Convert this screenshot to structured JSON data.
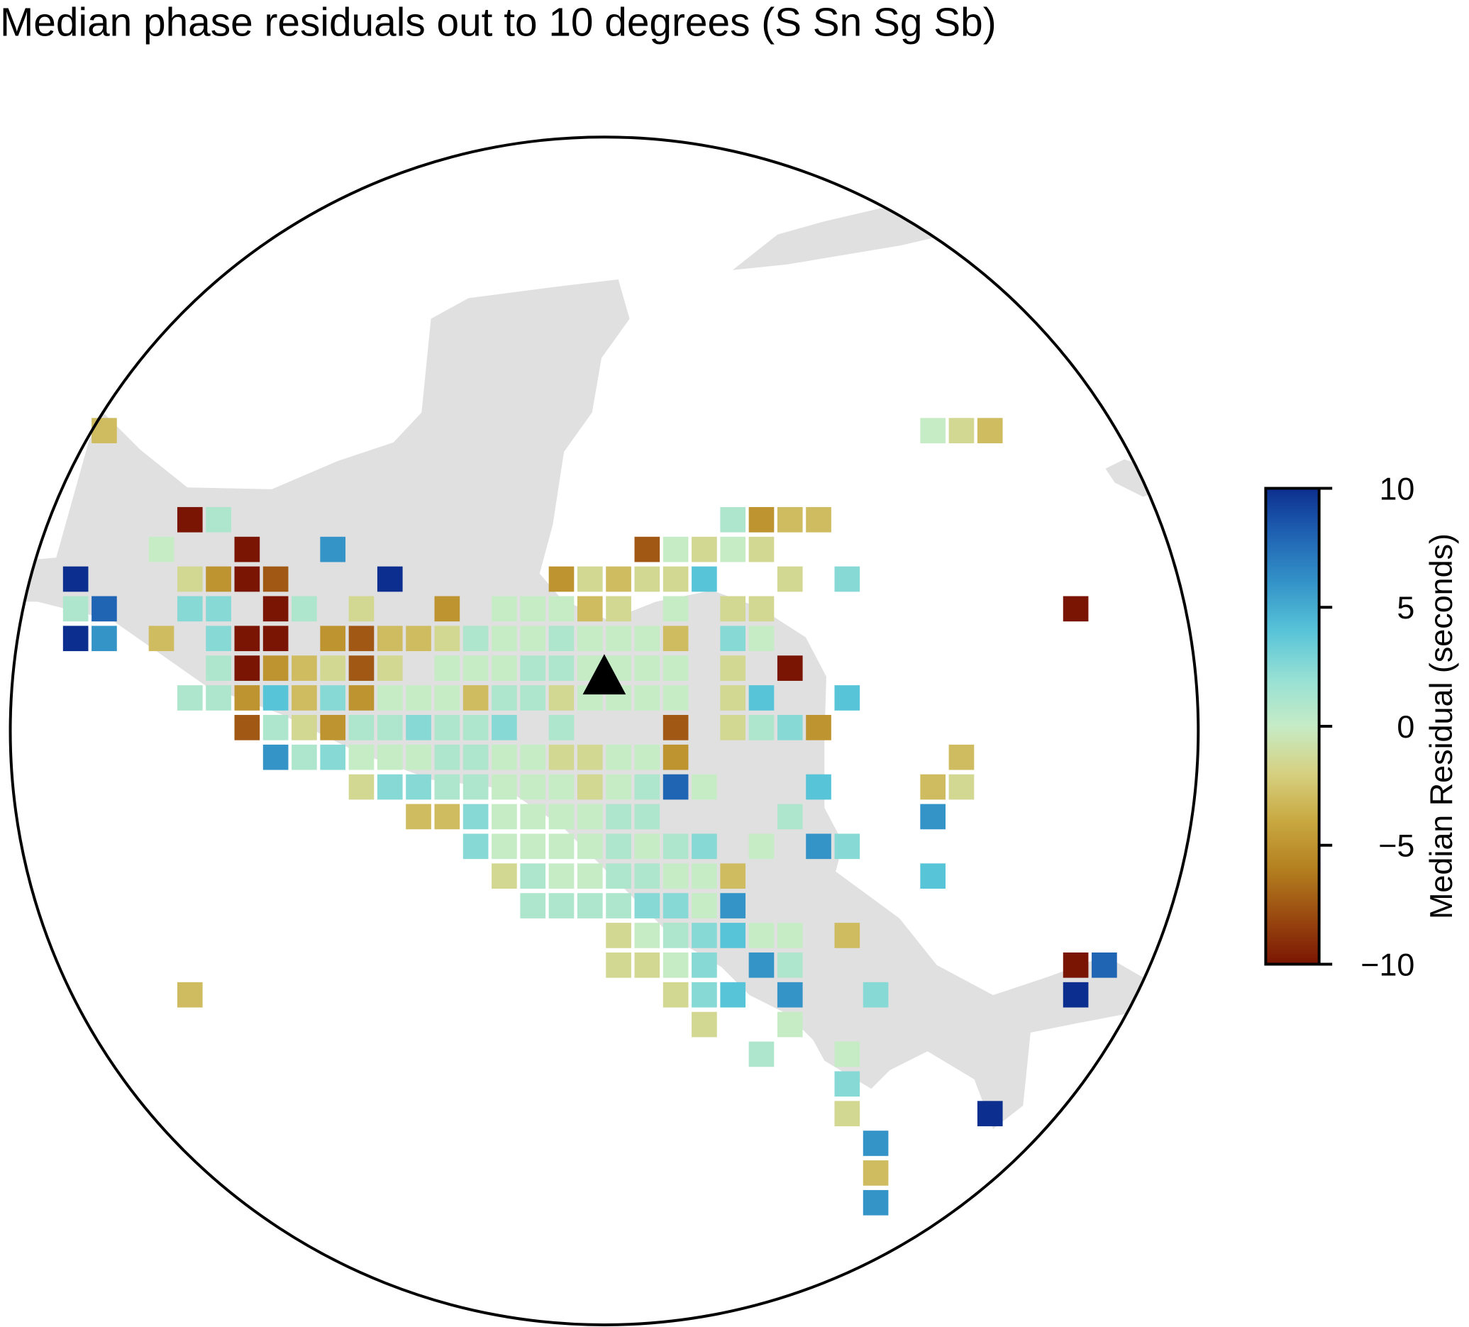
{
  "chart_data": {
    "type": "gridmap",
    "title": "Median phase residuals out to 10 degrees (S Sn Sg Sb)",
    "colorbar_label": "Median Residual (seconds)",
    "clim": [
      -10,
      10
    ],
    "cticks": [
      {
        "value": -10,
        "label": "−10"
      },
      {
        "value": -5,
        "label": "−5"
      },
      0,
      5,
      10
    ],
    "colormap": [
      "#7a1503",
      "#9a4a10",
      "#b4801f",
      "#c8a840",
      "#d6d080",
      "#c6ecc6",
      "#96e0d4",
      "#58c4d8",
      "#3494c8",
      "#2064b4",
      "#0c2f8f"
    ],
    "cells": [
      [
        -97.75,
        19,
        -3
      ],
      [
        -83.25,
        19,
        0
      ],
      [
        -82.75,
        19,
        -1.5
      ],
      [
        -82.25,
        19,
        -3
      ],
      [
        -96.25,
        17.5,
        -10
      ],
      [
        -95.75,
        17.5,
        1
      ],
      [
        -86.75,
        17.5,
        1
      ],
      [
        -86.25,
        17.5,
        -5
      ],
      [
        -85.75,
        17.5,
        -3
      ],
      [
        -85.25,
        17.5,
        -3
      ],
      [
        -96.75,
        17,
        0
      ],
      [
        -95.25,
        17,
        -10
      ],
      [
        -93.75,
        17,
        6
      ],
      [
        -88.25,
        17,
        -7.5
      ],
      [
        -87.75,
        17,
        0
      ],
      [
        -87.25,
        17,
        -1.5
      ],
      [
        -86.75,
        17,
        0
      ],
      [
        -86.25,
        17,
        -1.5
      ],
      [
        -98.25,
        16.5,
        10
      ],
      [
        -96.25,
        16.5,
        -1.5
      ],
      [
        -95.75,
        16.5,
        -5
      ],
      [
        -95.25,
        16.5,
        -10
      ],
      [
        -94.75,
        16.5,
        -7.5
      ],
      [
        -92.75,
        16.5,
        10
      ],
      [
        -89.75,
        16.5,
        -5
      ],
      [
        -89.25,
        16.5,
        -1.5
      ],
      [
        -88.75,
        16.5,
        -3
      ],
      [
        -88.25,
        16.5,
        -1.5
      ],
      [
        -87.75,
        16.5,
        -1.5
      ],
      [
        -87.25,
        16.5,
        4
      ],
      [
        -85.75,
        16.5,
        -1.5
      ],
      [
        -84.75,
        16.5,
        2.5
      ],
      [
        -98.25,
        16,
        1
      ],
      [
        -97.75,
        16,
        8
      ],
      [
        -96.25,
        16,
        2.5
      ],
      [
        -95.75,
        16,
        2.5
      ],
      [
        -94.75,
        16,
        -10
      ],
      [
        -94.25,
        16,
        1
      ],
      [
        -93.25,
        16,
        -1.5
      ],
      [
        -91.75,
        16,
        -5
      ],
      [
        -90.75,
        16,
        0
      ],
      [
        -90.25,
        16,
        0
      ],
      [
        -89.75,
        16,
        0
      ],
      [
        -89.25,
        16,
        -3
      ],
      [
        -88.75,
        16,
        -1.5
      ],
      [
        -87.75,
        16,
        0
      ],
      [
        -86.75,
        16,
        -1.5
      ],
      [
        -86.25,
        16,
        -1.5
      ],
      [
        -80.75,
        16,
        -10
      ],
      [
        -98.25,
        15.5,
        10
      ],
      [
        -97.75,
        15.5,
        6
      ],
      [
        -96.75,
        15.5,
        -3
      ],
      [
        -95.75,
        15.5,
        2.5
      ],
      [
        -95.25,
        15.5,
        -10
      ],
      [
        -94.75,
        15.5,
        -10
      ],
      [
        -93.75,
        15.5,
        -5
      ],
      [
        -93.25,
        15.5,
        -7.5
      ],
      [
        -92.75,
        15.5,
        -3
      ],
      [
        -92.25,
        15.5,
        -3
      ],
      [
        -91.75,
        15.5,
        -1.5
      ],
      [
        -91.25,
        15.5,
        1
      ],
      [
        -90.75,
        15.5,
        0
      ],
      [
        -90.25,
        15.5,
        0
      ],
      [
        -89.75,
        15.5,
        1
      ],
      [
        -89.25,
        15.5,
        0
      ],
      [
        -88.75,
        15.5,
        0
      ],
      [
        -88.25,
        15.5,
        0
      ],
      [
        -87.75,
        15.5,
        -3
      ],
      [
        -86.75,
        15.5,
        2.5
      ],
      [
        -86.25,
        15.5,
        0
      ],
      [
        -95.75,
        15,
        1
      ],
      [
        -95.25,
        15,
        -10
      ],
      [
        -94.75,
        15,
        -5
      ],
      [
        -94.25,
        15,
        -3
      ],
      [
        -93.75,
        15,
        -1.5
      ],
      [
        -93.25,
        15,
        -7.5
      ],
      [
        -92.75,
        15,
        -1.5
      ],
      [
        -91.75,
        15,
        0
      ],
      [
        -91.25,
        15,
        0
      ],
      [
        -90.75,
        15,
        0
      ],
      [
        -90.25,
        15,
        1
      ],
      [
        -89.75,
        15,
        1
      ],
      [
        -89.25,
        15,
        0
      ],
      [
        -88.75,
        15,
        0
      ],
      [
        -88.25,
        15,
        0
      ],
      [
        -87.75,
        15,
        0
      ],
      [
        -86.75,
        15,
        -1.5
      ],
      [
        -85.75,
        15,
        -10
      ],
      [
        -96.25,
        14.5,
        1
      ],
      [
        -95.75,
        14.5,
        1
      ],
      [
        -95.25,
        14.5,
        -5
      ],
      [
        -94.75,
        14.5,
        4
      ],
      [
        -94.25,
        14.5,
        -3
      ],
      [
        -93.75,
        14.5,
        2.5
      ],
      [
        -93.25,
        14.5,
        -5
      ],
      [
        -92.75,
        14.5,
        0
      ],
      [
        -92.25,
        14.5,
        0
      ],
      [
        -91.75,
        14.5,
        0
      ],
      [
        -91.25,
        14.5,
        -3
      ],
      [
        -90.75,
        14.5,
        1
      ],
      [
        -90.25,
        14.5,
        1
      ],
      [
        -89.75,
        14.5,
        -1.5
      ],
      [
        -89.25,
        14.5,
        0
      ],
      [
        -88.75,
        14.5,
        0
      ],
      [
        -88.25,
        14.5,
        0
      ],
      [
        -87.75,
        14.5,
        0
      ],
      [
        -86.75,
        14.5,
        -1.5
      ],
      [
        -86.25,
        14.5,
        4
      ],
      [
        -84.75,
        14.5,
        4
      ],
      [
        -95.25,
        14,
        -7.5
      ],
      [
        -94.75,
        14,
        1
      ],
      [
        -94.25,
        14,
        -1.5
      ],
      [
        -93.75,
        14,
        -5
      ],
      [
        -93.25,
        14,
        1
      ],
      [
        -92.75,
        14,
        1
      ],
      [
        -92.25,
        14,
        2.5
      ],
      [
        -91.75,
        14,
        1
      ],
      [
        -91.25,
        14,
        1
      ],
      [
        -90.75,
        14,
        2.5
      ],
      [
        -89.75,
        14,
        1
      ],
      [
        -87.75,
        14,
        -7.5
      ],
      [
        -86.75,
        14,
        -1.5
      ],
      [
        -86.25,
        14,
        1
      ],
      [
        -85.75,
        14,
        2.5
      ],
      [
        -85.25,
        14,
        -5
      ],
      [
        -94.75,
        13.5,
        6
      ],
      [
        -94.25,
        13.5,
        1
      ],
      [
        -93.75,
        13.5,
        2.5
      ],
      [
        -93.25,
        13.5,
        0
      ],
      [
        -92.75,
        13.5,
        0
      ],
      [
        -92.25,
        13.5,
        0
      ],
      [
        -91.75,
        13.5,
        1
      ],
      [
        -91.25,
        13.5,
        1
      ],
      [
        -90.75,
        13.5,
        0
      ],
      [
        -90.25,
        13.5,
        0
      ],
      [
        -89.75,
        13.5,
        -1.5
      ],
      [
        -89.25,
        13.5,
        -1.5
      ],
      [
        -88.75,
        13.5,
        0
      ],
      [
        -88.25,
        13.5,
        0
      ],
      [
        -87.75,
        13.5,
        -5
      ],
      [
        -82.75,
        13.5,
        -3
      ],
      [
        -93.25,
        13,
        -1.5
      ],
      [
        -92.75,
        13,
        2.5
      ],
      [
        -92.25,
        13,
        2.5
      ],
      [
        -91.75,
        13,
        1
      ],
      [
        -91.25,
        13,
        1
      ],
      [
        -90.75,
        13,
        0
      ],
      [
        -90.25,
        13,
        0
      ],
      [
        -89.75,
        13,
        0
      ],
      [
        -89.25,
        13,
        -1.5
      ],
      [
        -88.75,
        13,
        0
      ],
      [
        -88.25,
        13,
        1
      ],
      [
        -87.75,
        13,
        8
      ],
      [
        -87.25,
        13,
        0
      ],
      [
        -85.25,
        13,
        4
      ],
      [
        -83.25,
        13,
        -3
      ],
      [
        -82.75,
        13,
        -1.5
      ],
      [
        -92.25,
        12.5,
        -3
      ],
      [
        -91.75,
        12.5,
        -3
      ],
      [
        -91.25,
        12.5,
        2.5
      ],
      [
        -90.75,
        12.5,
        0
      ],
      [
        -90.25,
        12.5,
        0
      ],
      [
        -89.75,
        12.5,
        0
      ],
      [
        -89.25,
        12.5,
        0
      ],
      [
        -88.75,
        12.5,
        1
      ],
      [
        -88.25,
        12.5,
        1
      ],
      [
        -85.75,
        12.5,
        1
      ],
      [
        -83.25,
        12.5,
        6
      ],
      [
        -91.25,
        12,
        2.5
      ],
      [
        -90.75,
        12,
        0
      ],
      [
        -90.25,
        12,
        0
      ],
      [
        -89.75,
        12,
        0
      ],
      [
        -89.25,
        12,
        0
      ],
      [
        -88.75,
        12,
        1
      ],
      [
        -88.25,
        12,
        0
      ],
      [
        -87.75,
        12,
        1
      ],
      [
        -87.25,
        12,
        2.5
      ],
      [
        -86.25,
        12,
        0
      ],
      [
        -85.25,
        12,
        6
      ],
      [
        -84.75,
        12,
        2.5
      ],
      [
        -90.75,
        11.5,
        -1.5
      ],
      [
        -90.25,
        11.5,
        1
      ],
      [
        -89.75,
        11.5,
        0
      ],
      [
        -89.25,
        11.5,
        0
      ],
      [
        -88.75,
        11.5,
        1
      ],
      [
        -88.25,
        11.5,
        1
      ],
      [
        -87.75,
        11.5,
        0
      ],
      [
        -87.25,
        11.5,
        0
      ],
      [
        -86.75,
        11.5,
        -3
      ],
      [
        -83.25,
        11.5,
        4
      ],
      [
        -90.25,
        11,
        1
      ],
      [
        -89.75,
        11,
        1
      ],
      [
        -89.25,
        11,
        1
      ],
      [
        -88.75,
        11,
        1
      ],
      [
        -88.25,
        11,
        2.5
      ],
      [
        -87.75,
        11,
        2.5
      ],
      [
        -87.25,
        11,
        0
      ],
      [
        -86.75,
        11,
        6
      ],
      [
        -88.75,
        10.5,
        -1.5
      ],
      [
        -88.25,
        10.5,
        0
      ],
      [
        -87.75,
        10.5,
        1
      ],
      [
        -87.25,
        10.5,
        2.5
      ],
      [
        -86.75,
        10.5,
        4
      ],
      [
        -86.25,
        10.5,
        0
      ],
      [
        -85.75,
        10.5,
        0
      ],
      [
        -84.75,
        10.5,
        -3
      ],
      [
        -88.75,
        10,
        -1.5
      ],
      [
        -88.25,
        10,
        -1.5
      ],
      [
        -87.75,
        10,
        0
      ],
      [
        -87.25,
        10,
        2.5
      ],
      [
        -86.25,
        10,
        6
      ],
      [
        -85.75,
        10,
        1
      ],
      [
        -80.75,
        10,
        -10
      ],
      [
        -80.25,
        10,
        8
      ],
      [
        -96.25,
        9.5,
        -3
      ],
      [
        -87.75,
        9.5,
        -1.5
      ],
      [
        -87.25,
        9.5,
        2.5
      ],
      [
        -86.75,
        9.5,
        4
      ],
      [
        -85.75,
        9.5,
        6
      ],
      [
        -84.25,
        9.5,
        2.5
      ],
      [
        -80.75,
        9.5,
        10
      ],
      [
        -87.25,
        9,
        -1.5
      ],
      [
        -85.75,
        9,
        0
      ],
      [
        -86.25,
        8.5,
        1
      ],
      [
        -84.75,
        8.5,
        0
      ],
      [
        -84.75,
        8,
        2.5
      ],
      [
        -84.75,
        7.5,
        -1.5
      ],
      [
        -82.25,
        7.5,
        10
      ],
      [
        -84.25,
        7,
        6
      ],
      [
        -84.25,
        6.5,
        -3
      ],
      [
        -84.25,
        6,
        6
      ]
    ]
  }
}
